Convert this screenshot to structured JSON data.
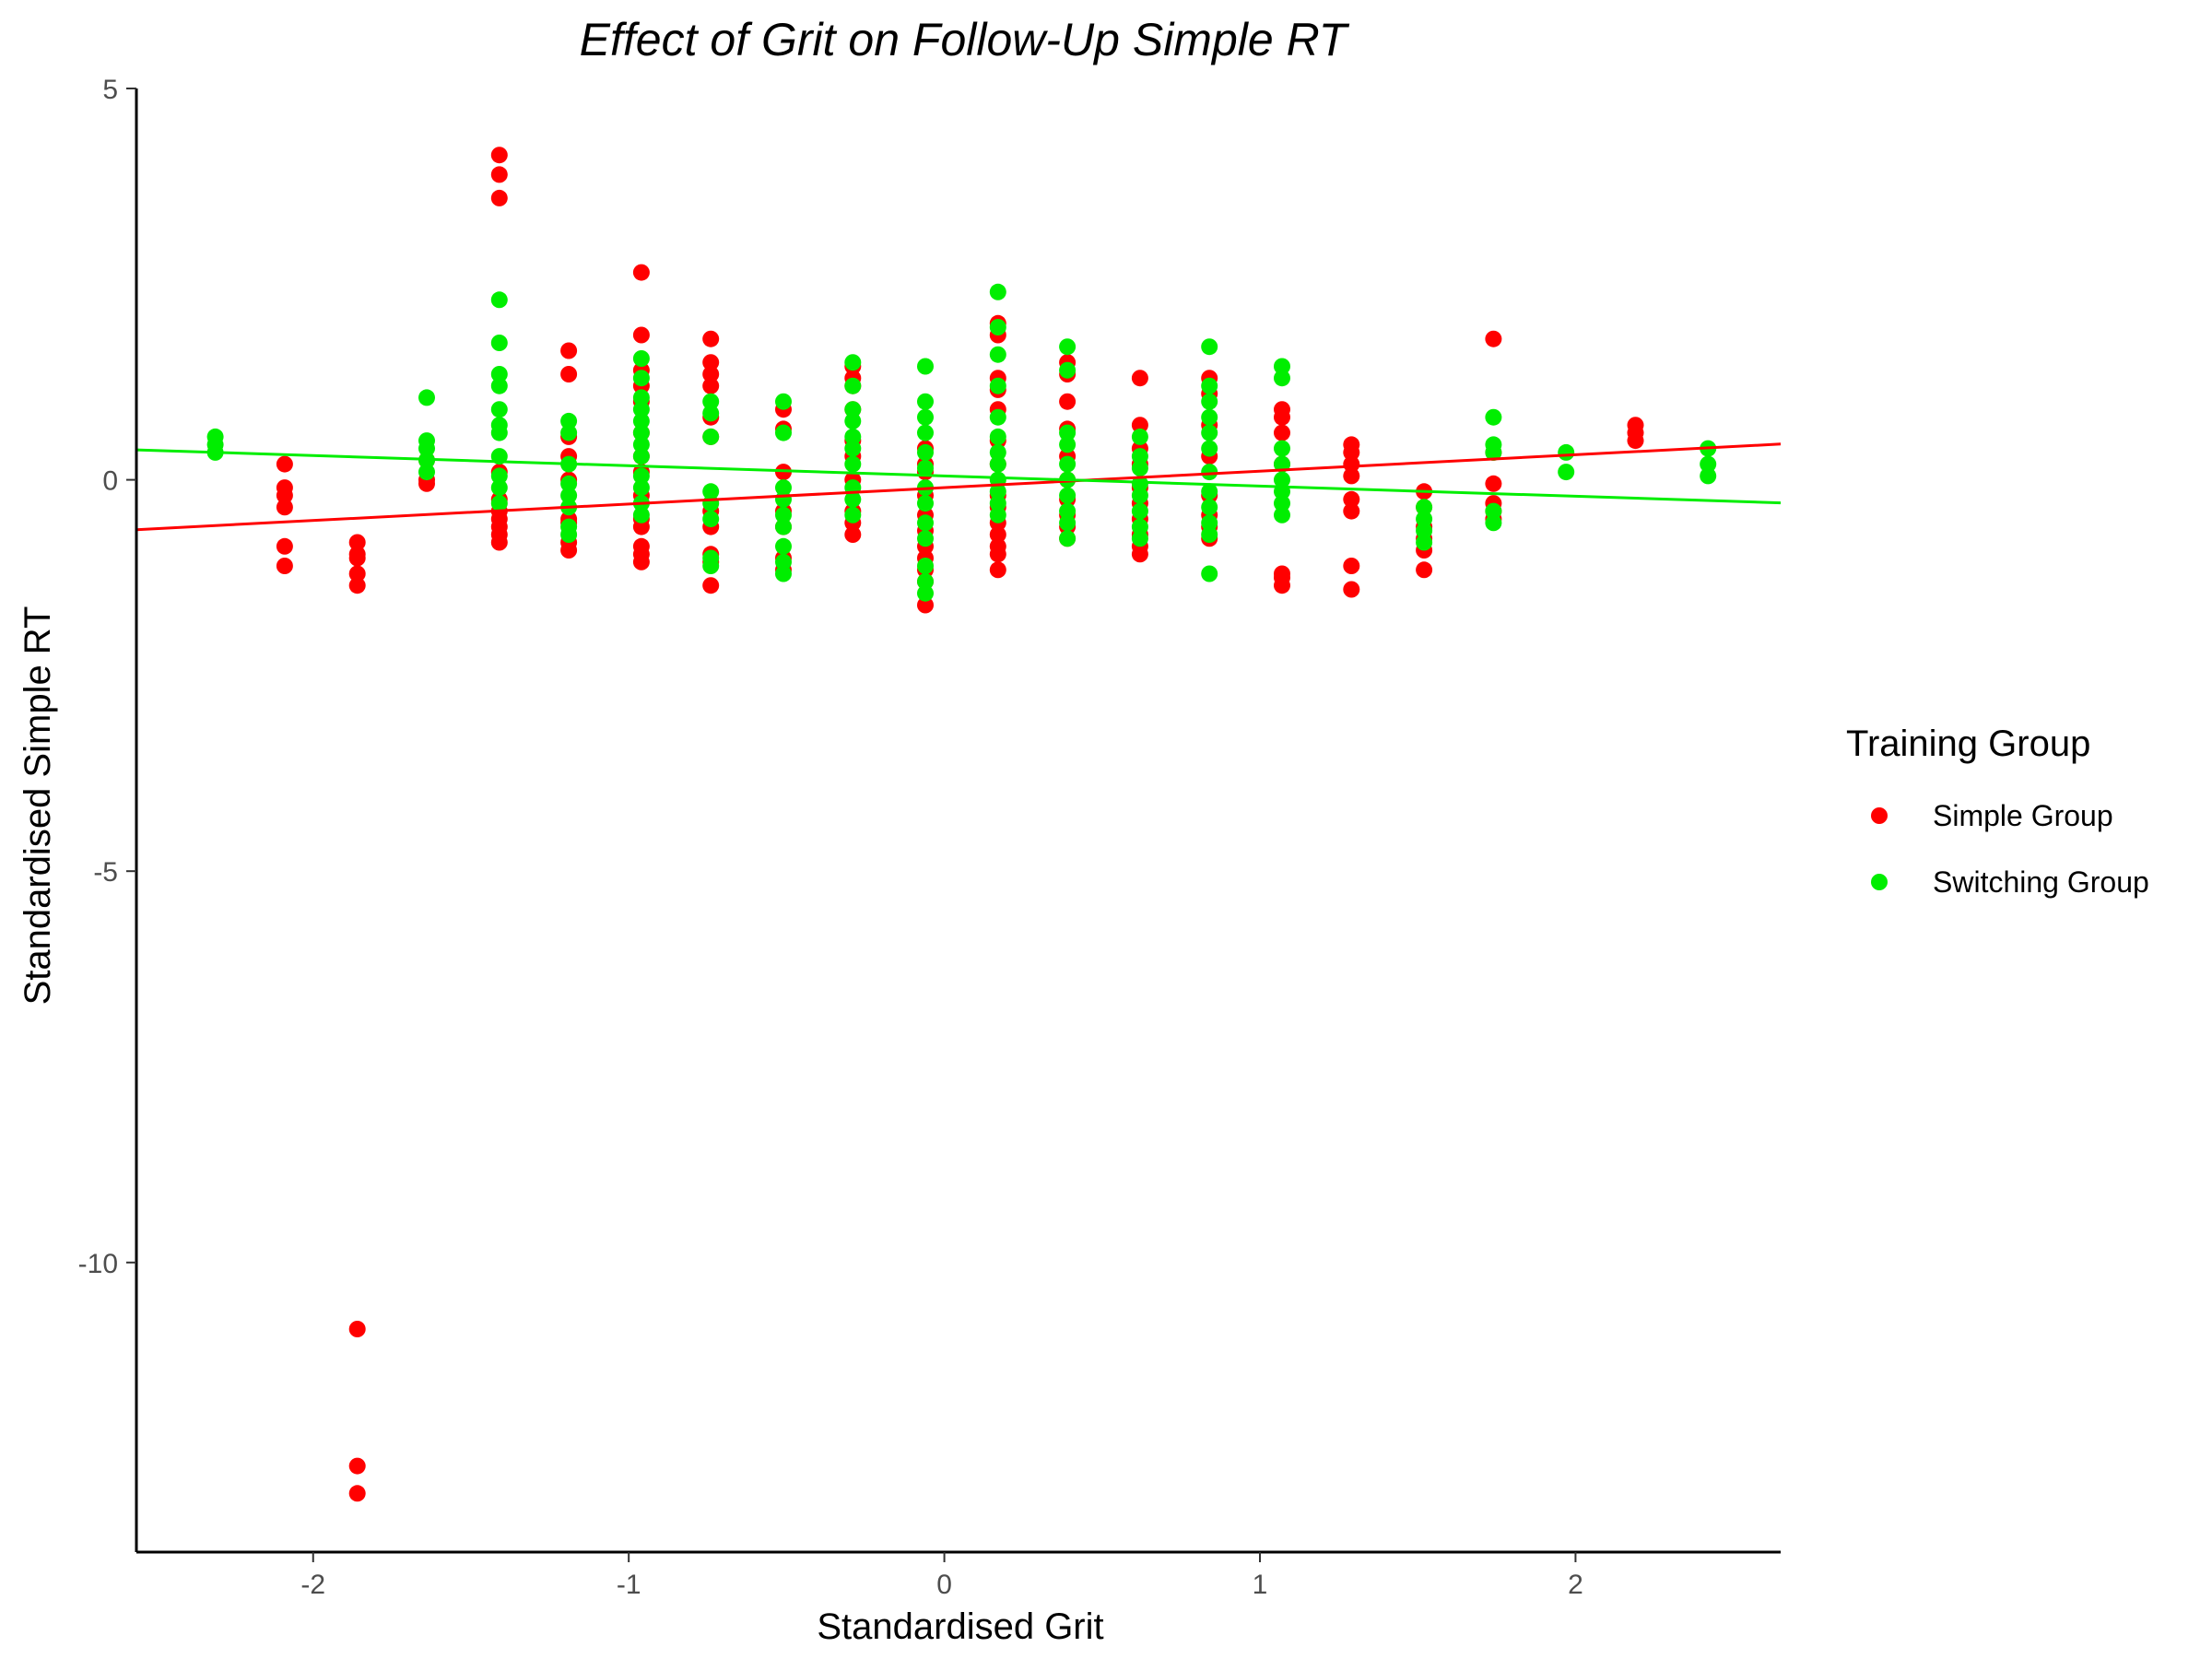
{
  "chart_data": {
    "type": "scatter",
    "title": "Effect of Grit on Follow-Up Simple RT",
    "xlabel": "Standardised Grit",
    "ylabel": "Standardised Simple RT",
    "xlim": [
      -2.56,
      2.65
    ],
    "ylim": [
      -13.7,
      5.0
    ],
    "x_ticks": [
      -2,
      -1,
      0,
      1,
      2
    ],
    "x_tick_labels": [
      "-2",
      "-1",
      "0",
      "1",
      "2"
    ],
    "y_ticks": [
      5,
      0,
      -5,
      -10
    ],
    "y_tick_labels": [
      "5",
      "0",
      "-5",
      "-10"
    ],
    "grid": false,
    "legend": {
      "title": "Training Group",
      "position": "right",
      "entries": [
        "Simple Group",
        "Switching Group"
      ]
    },
    "series": [
      {
        "name": "Simple Group",
        "color": "#ff0000",
        "trend": {
          "intercept": -0.1,
          "slope": 0.21
        },
        "points": [
          [
            -2.09,
            0.2
          ],
          [
            -2.09,
            -0.1
          ],
          [
            -2.09,
            -0.2
          ],
          [
            -2.09,
            -0.35
          ],
          [
            -2.09,
            -0.85
          ],
          [
            -2.09,
            -1.1
          ],
          [
            -1.86,
            -0.8
          ],
          [
            -1.86,
            -0.95
          ],
          [
            -1.86,
            -1.0
          ],
          [
            -1.86,
            -1.2
          ],
          [
            -1.86,
            -1.35
          ],
          [
            -1.86,
            -10.85
          ],
          [
            -1.86,
            -12.6
          ],
          [
            -1.86,
            -12.95
          ],
          [
            -1.64,
            0.25
          ],
          [
            -1.64,
            0.0
          ],
          [
            -1.64,
            -0.05
          ],
          [
            -1.41,
            4.15
          ],
          [
            -1.41,
            3.9
          ],
          [
            -1.41,
            3.6
          ],
          [
            -1.41,
            -0.4
          ],
          [
            -1.41,
            -0.5
          ],
          [
            -1.41,
            -0.6
          ],
          [
            -1.41,
            -0.7
          ],
          [
            -1.41,
            -0.8
          ],
          [
            -1.41,
            0.1
          ],
          [
            -1.41,
            -0.25
          ],
          [
            -1.19,
            1.65
          ],
          [
            -1.19,
            1.35
          ],
          [
            -1.19,
            0.55
          ],
          [
            -1.19,
            0.3
          ],
          [
            -1.19,
            -0.5
          ],
          [
            -1.19,
            -0.55
          ],
          [
            -1.19,
            -0.8
          ],
          [
            -1.19,
            -0.9
          ],
          [
            -1.19,
            0.0
          ],
          [
            -0.96,
            2.65
          ],
          [
            -0.96,
            1.85
          ],
          [
            -0.96,
            1.4
          ],
          [
            -0.96,
            1.2
          ],
          [
            -0.96,
            1.0
          ],
          [
            -0.96,
            0.6
          ],
          [
            -0.96,
            0.3
          ],
          [
            -0.96,
            0.1
          ],
          [
            -0.96,
            -0.2
          ],
          [
            -0.96,
            -0.5
          ],
          [
            -0.96,
            -0.6
          ],
          [
            -0.96,
            -0.85
          ],
          [
            -0.96,
            -0.95
          ],
          [
            -0.96,
            -1.05
          ],
          [
            -0.74,
            1.8
          ],
          [
            -0.74,
            1.5
          ],
          [
            -0.74,
            1.35
          ],
          [
            -0.74,
            1.2
          ],
          [
            -0.74,
            0.8
          ],
          [
            -0.74,
            0.55
          ],
          [
            -0.74,
            -0.4
          ],
          [
            -0.74,
            -0.6
          ],
          [
            -0.74,
            -0.95
          ],
          [
            -0.74,
            -1.05
          ],
          [
            -0.74,
            -1.35
          ],
          [
            -0.51,
            0.9
          ],
          [
            -0.51,
            0.65
          ],
          [
            -0.51,
            0.1
          ],
          [
            -0.51,
            -0.4
          ],
          [
            -0.51,
            -0.6
          ],
          [
            -0.51,
            -1.0
          ],
          [
            -0.51,
            -1.15
          ],
          [
            -0.29,
            1.45
          ],
          [
            -0.29,
            1.3
          ],
          [
            -0.29,
            1.2
          ],
          [
            -0.29,
            0.9
          ],
          [
            -0.29,
            0.5
          ],
          [
            -0.29,
            0.3
          ],
          [
            -0.29,
            0.0
          ],
          [
            -0.29,
            -0.4
          ],
          [
            -0.29,
            -0.55
          ],
          [
            -0.29,
            -0.7
          ],
          [
            -0.06,
            0.4
          ],
          [
            -0.06,
            0.2
          ],
          [
            -0.06,
            0.1
          ],
          [
            -0.06,
            -0.2
          ],
          [
            -0.06,
            -0.45
          ],
          [
            -0.06,
            -0.65
          ],
          [
            -0.06,
            -0.85
          ],
          [
            -0.06,
            -1.0
          ],
          [
            -0.06,
            -1.15
          ],
          [
            -0.06,
            -1.3
          ],
          [
            -0.06,
            -1.6
          ],
          [
            0.17,
            2.0
          ],
          [
            0.17,
            1.85
          ],
          [
            0.17,
            1.3
          ],
          [
            0.17,
            1.15
          ],
          [
            0.17,
            0.9
          ],
          [
            0.17,
            0.5
          ],
          [
            0.17,
            0.2
          ],
          [
            0.17,
            -0.2
          ],
          [
            0.17,
            -0.35
          ],
          [
            0.17,
            -0.55
          ],
          [
            0.17,
            -0.7
          ],
          [
            0.17,
            -0.85
          ],
          [
            0.17,
            -0.95
          ],
          [
            0.17,
            -1.15
          ],
          [
            0.39,
            1.5
          ],
          [
            0.39,
            1.35
          ],
          [
            0.39,
            1.0
          ],
          [
            0.39,
            0.65
          ],
          [
            0.39,
            0.3
          ],
          [
            0.39,
            0.0
          ],
          [
            0.39,
            -0.25
          ],
          [
            0.39,
            -0.45
          ],
          [
            0.39,
            -0.6
          ],
          [
            0.39,
            -0.75
          ],
          [
            0.62,
            1.3
          ],
          [
            0.62,
            0.7
          ],
          [
            0.62,
            0.4
          ],
          [
            0.62,
            0.2
          ],
          [
            0.62,
            -0.1
          ],
          [
            0.62,
            -0.3
          ],
          [
            0.62,
            -0.5
          ],
          [
            0.62,
            -0.7
          ],
          [
            0.62,
            -0.85
          ],
          [
            0.62,
            -0.95
          ],
          [
            0.84,
            1.3
          ],
          [
            0.84,
            1.1
          ],
          [
            0.84,
            0.7
          ],
          [
            0.84,
            0.3
          ],
          [
            0.84,
            -0.2
          ],
          [
            0.84,
            -0.45
          ],
          [
            0.84,
            -0.6
          ],
          [
            0.84,
            -0.75
          ],
          [
            1.07,
            0.9
          ],
          [
            1.07,
            0.8
          ],
          [
            1.07,
            0.6
          ],
          [
            1.07,
            0.2
          ],
          [
            1.07,
            -1.2
          ],
          [
            1.07,
            -1.25
          ],
          [
            1.07,
            -1.35
          ],
          [
            1.29,
            0.45
          ],
          [
            1.29,
            0.35
          ],
          [
            1.29,
            0.2
          ],
          [
            1.29,
            0.05
          ],
          [
            1.29,
            -0.25
          ],
          [
            1.29,
            -0.4
          ],
          [
            1.29,
            -1.1
          ],
          [
            1.29,
            -1.4
          ],
          [
            1.52,
            -0.15
          ],
          [
            1.52,
            -0.35
          ],
          [
            1.52,
            -0.6
          ],
          [
            1.52,
            -0.75
          ],
          [
            1.52,
            -0.9
          ],
          [
            1.52,
            -1.15
          ],
          [
            1.74,
            1.8
          ],
          [
            1.74,
            0.35
          ],
          [
            1.74,
            -0.05
          ],
          [
            1.74,
            -0.3
          ],
          [
            1.74,
            -0.4
          ],
          [
            1.74,
            -0.5
          ],
          [
            2.19,
            0.7
          ],
          [
            2.19,
            0.6
          ],
          [
            2.19,
            0.5
          ]
        ]
      },
      {
        "name": "Switching Group",
        "color": "#00ee00",
        "trend": {
          "intercept": 0.05,
          "slope": -0.13
        },
        "points": [
          [
            -2.31,
            0.55
          ],
          [
            -2.31,
            0.45
          ],
          [
            -2.31,
            0.35
          ],
          [
            -1.64,
            1.05
          ],
          [
            -1.64,
            0.5
          ],
          [
            -1.64,
            0.4
          ],
          [
            -1.64,
            0.25
          ],
          [
            -1.64,
            0.1
          ],
          [
            -1.41,
            2.3
          ],
          [
            -1.41,
            1.75
          ],
          [
            -1.41,
            1.35
          ],
          [
            -1.41,
            1.2
          ],
          [
            -1.41,
            0.9
          ],
          [
            -1.41,
            0.7
          ],
          [
            -1.41,
            0.6
          ],
          [
            -1.41,
            0.3
          ],
          [
            -1.41,
            0.05
          ],
          [
            -1.41,
            -0.1
          ],
          [
            -1.41,
            -0.3
          ],
          [
            -1.19,
            0.75
          ],
          [
            -1.19,
            0.6
          ],
          [
            -1.19,
            0.2
          ],
          [
            -1.19,
            -0.05
          ],
          [
            -1.19,
            -0.2
          ],
          [
            -1.19,
            -0.35
          ],
          [
            -1.19,
            -0.6
          ],
          [
            -1.19,
            -0.7
          ],
          [
            -0.96,
            1.55
          ],
          [
            -0.96,
            1.3
          ],
          [
            -0.96,
            1.05
          ],
          [
            -0.96,
            0.9
          ],
          [
            -0.96,
            0.75
          ],
          [
            -0.96,
            0.6
          ],
          [
            -0.96,
            0.45
          ],
          [
            -0.96,
            0.3
          ],
          [
            -0.96,
            0.05
          ],
          [
            -0.96,
            -0.1
          ],
          [
            -0.96,
            -0.3
          ],
          [
            -0.96,
            -0.45
          ],
          [
            -0.74,
            1.0
          ],
          [
            -0.74,
            0.85
          ],
          [
            -0.74,
            0.55
          ],
          [
            -0.74,
            -0.15
          ],
          [
            -0.74,
            -0.3
          ],
          [
            -0.74,
            -0.5
          ],
          [
            -0.74,
            -1.0
          ],
          [
            -0.74,
            -1.1
          ],
          [
            -0.51,
            1.0
          ],
          [
            -0.51,
            0.6
          ],
          [
            -0.51,
            -0.1
          ],
          [
            -0.51,
            -0.25
          ],
          [
            -0.51,
            -0.45
          ],
          [
            -0.51,
            -0.6
          ],
          [
            -0.51,
            -0.85
          ],
          [
            -0.51,
            -1.05
          ],
          [
            -0.51,
            -1.2
          ],
          [
            -0.29,
            1.5
          ],
          [
            -0.29,
            1.2
          ],
          [
            -0.29,
            0.9
          ],
          [
            -0.29,
            0.75
          ],
          [
            -0.29,
            0.55
          ],
          [
            -0.29,
            0.4
          ],
          [
            -0.29,
            0.2
          ],
          [
            -0.29,
            -0.1
          ],
          [
            -0.29,
            -0.25
          ],
          [
            -0.29,
            -0.45
          ],
          [
            -0.06,
            1.45
          ],
          [
            -0.06,
            1.0
          ],
          [
            -0.06,
            0.8
          ],
          [
            -0.06,
            0.6
          ],
          [
            -0.06,
            0.35
          ],
          [
            -0.06,
            0.15
          ],
          [
            -0.06,
            -0.1
          ],
          [
            -0.06,
            -0.3
          ],
          [
            -0.06,
            -0.55
          ],
          [
            -0.06,
            -0.75
          ],
          [
            -0.06,
            -1.1
          ],
          [
            -0.06,
            -1.3
          ],
          [
            -0.06,
            -1.45
          ],
          [
            0.17,
            2.4
          ],
          [
            0.17,
            1.95
          ],
          [
            0.17,
            1.6
          ],
          [
            0.17,
            1.2
          ],
          [
            0.17,
            0.8
          ],
          [
            0.17,
            0.55
          ],
          [
            0.17,
            0.35
          ],
          [
            0.17,
            0.2
          ],
          [
            0.17,
            0.0
          ],
          [
            0.17,
            -0.15
          ],
          [
            0.17,
            -0.3
          ],
          [
            0.17,
            -0.45
          ],
          [
            0.39,
            1.7
          ],
          [
            0.39,
            1.4
          ],
          [
            0.39,
            0.6
          ],
          [
            0.39,
            0.45
          ],
          [
            0.39,
            0.2
          ],
          [
            0.39,
            0.0
          ],
          [
            0.39,
            -0.2
          ],
          [
            0.39,
            -0.4
          ],
          [
            0.39,
            -0.55
          ],
          [
            0.39,
            -0.75
          ],
          [
            0.62,
            0.55
          ],
          [
            0.62,
            0.3
          ],
          [
            0.62,
            0.15
          ],
          [
            0.62,
            -0.05
          ],
          [
            0.62,
            -0.2
          ],
          [
            0.62,
            -0.4
          ],
          [
            0.62,
            -0.6
          ],
          [
            0.62,
            -0.75
          ],
          [
            0.84,
            1.7
          ],
          [
            0.84,
            1.2
          ],
          [
            0.84,
            1.0
          ],
          [
            0.84,
            0.8
          ],
          [
            0.84,
            0.6
          ],
          [
            0.84,
            0.4
          ],
          [
            0.84,
            0.1
          ],
          [
            0.84,
            -0.15
          ],
          [
            0.84,
            -0.35
          ],
          [
            0.84,
            -0.55
          ],
          [
            0.84,
            -0.7
          ],
          [
            0.84,
            -1.2
          ],
          [
            1.07,
            1.45
          ],
          [
            1.07,
            1.3
          ],
          [
            1.07,
            0.4
          ],
          [
            1.07,
            0.2
          ],
          [
            1.07,
            0.0
          ],
          [
            1.07,
            -0.15
          ],
          [
            1.07,
            -0.3
          ],
          [
            1.07,
            -0.45
          ],
          [
            1.52,
            -0.35
          ],
          [
            1.52,
            -0.5
          ],
          [
            1.52,
            -0.65
          ],
          [
            1.52,
            -0.8
          ],
          [
            1.74,
            0.8
          ],
          [
            1.74,
            0.45
          ],
          [
            1.74,
            0.35
          ],
          [
            1.74,
            -0.4
          ],
          [
            1.74,
            -0.55
          ],
          [
            1.97,
            0.35
          ],
          [
            1.97,
            0.1
          ],
          [
            2.42,
            0.4
          ],
          [
            2.42,
            0.2
          ],
          [
            2.42,
            0.05
          ]
        ]
      }
    ]
  }
}
